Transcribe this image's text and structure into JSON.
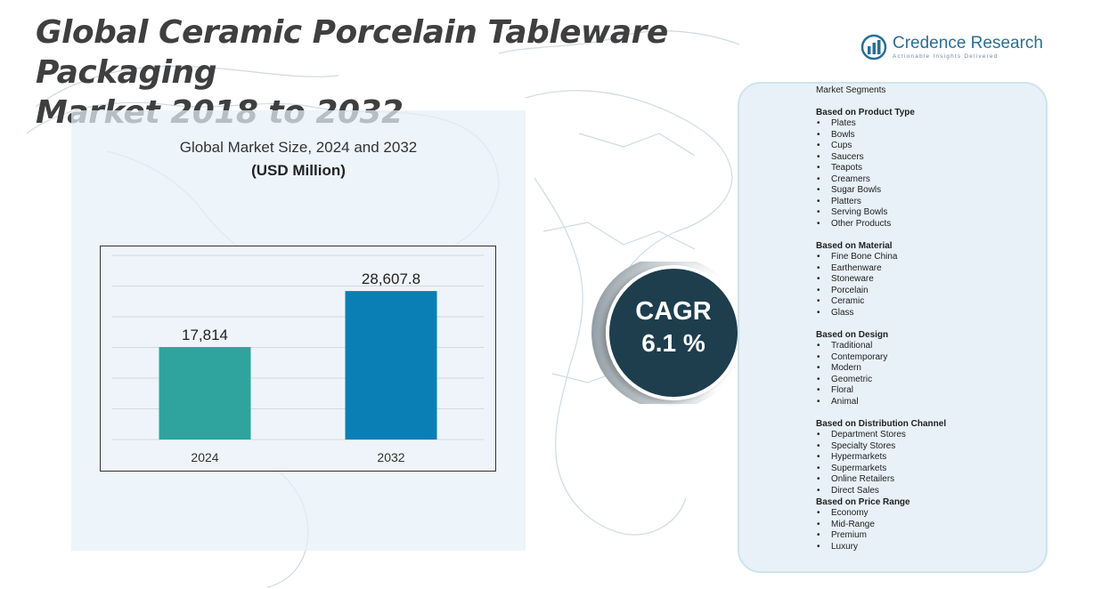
{
  "title_lines": [
    "Global Ceramic Porcelain Tableware Packaging",
    "Market 2018 to 2032"
  ],
  "logo": {
    "name": "Credence Research",
    "tagline": "Actionable Insights Delivered"
  },
  "chart_data": {
    "type": "bar",
    "title": "Global Market Size, 2024 and 2032",
    "subtitle": "(USD Million)",
    "categories": [
      "2024",
      "2032"
    ],
    "values": [
      17814,
      28607.8
    ],
    "value_labels": [
      "17,814",
      "28,607.8"
    ],
    "colors": [
      "#2fa39d",
      "#0a7fb5"
    ],
    "ylim": [
      0,
      36000
    ],
    "grid": true
  },
  "cagr": {
    "label": "CAGR",
    "value": "6.1 %"
  },
  "segments": {
    "title": "Market Segments",
    "groups": [
      {
        "title": "Based on Product Type",
        "items": [
          "Plates",
          "Bowls",
          "Cups",
          "Saucers",
          "Teapots",
          "Creamers",
          "Sugar Bowls",
          "Platters",
          "Serving Bowls",
          "Other Products"
        ]
      },
      {
        "title": "Based on Material",
        "items": [
          "Fine Bone China",
          "Earthenware",
          "Stoneware",
          "Porcelain",
          "Ceramic",
          "Glass"
        ]
      },
      {
        "title": "Based on Design",
        "items": [
          "Traditional",
          "Contemporary",
          "Modern",
          "Geometric",
          "Floral",
          "Animal"
        ]
      },
      {
        "title": "Based on Distribution Channel",
        "items": [
          "Department Stores",
          "Specialty Stores",
          "Hypermarkets",
          "Supermarkets",
          "Online Retailers",
          "Direct Sales"
        ]
      },
      {
        "title": "Based on  Price Range",
        "items": [
          "Economy",
          "Mid-Range",
          "Premium",
          "Luxury"
        ]
      }
    ]
  }
}
